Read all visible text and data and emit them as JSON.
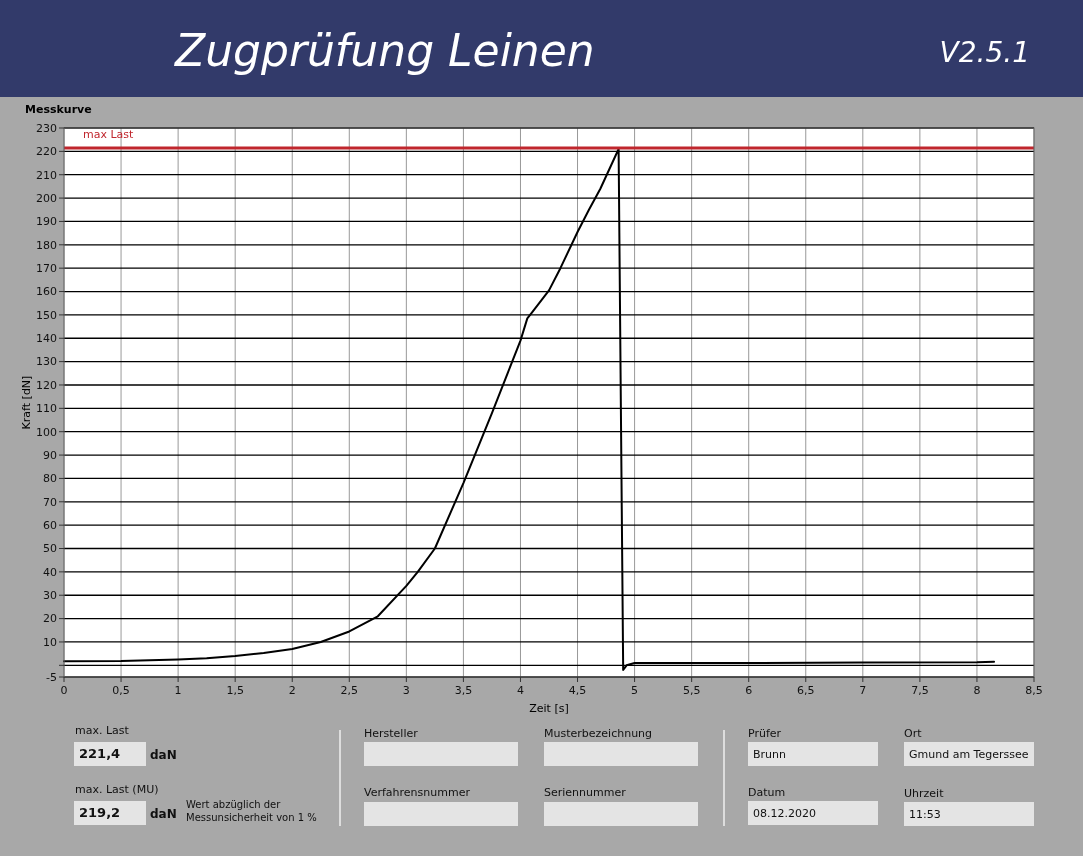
{
  "chart_data": {
    "type": "line",
    "title": "Zugprüfung Leinen",
    "subtitle": "Messkurve",
    "xlabel": "Zeit [s]",
    "ylabel": "Kraft [dN]",
    "xlim": [
      0,
      8.5
    ],
    "xticks": [
      0,
      {
        "value": 0.5,
        "label": "0,5"
      },
      1,
      {
        "value": 1.5,
        "label": "1,5"
      },
      2,
      {
        "value": 2.5,
        "label": "2,5"
      },
      3,
      {
        "value": 3.5,
        "label": "3,5"
      },
      4,
      {
        "value": 4.5,
        "label": "4,5"
      },
      5,
      {
        "value": 5.5,
        "label": "5,5"
      },
      6,
      {
        "value": 6.5,
        "label": "6,5"
      },
      7,
      {
        "value": 7.5,
        "label": "7,5"
      },
      8,
      {
        "value": 8.5,
        "label": "8,5"
      }
    ],
    "ylim": [
      -5,
      230
    ],
    "yticks": [
      -5,
      {
        "value": 0,
        "label": null
      },
      10,
      20,
      30,
      40,
      50,
      60,
      70,
      80,
      90,
      100,
      110,
      120,
      130,
      140,
      150,
      160,
      170,
      180,
      190,
      200,
      210,
      220,
      230
    ],
    "grid": true,
    "marker": "none",
    "line_style": "solid",
    "series": [
      {
        "color": "#000000",
        "x": [
          0,
          0.5,
          1,
          1.25,
          1.5,
          1.75,
          2,
          2.25,
          2.5,
          2.75,
          3,
          3.1,
          3.25,
          3.5,
          3.75,
          4,
          4.06,
          4.1,
          4.25,
          4.35,
          4.5,
          4.6,
          4.7,
          4.86,
          4.9,
          4.93,
          5,
          5.5,
          6,
          7,
          8,
          8.15
        ],
        "values": [
          1.7,
          1.8,
          2.5,
          3,
          4,
          5.3,
          7,
          10,
          14.5,
          21,
          34,
          40,
          50,
          78,
          108,
          139,
          148.5,
          151,
          160.5,
          170,
          185.5,
          195,
          204,
          221,
          -2,
          0,
          1,
          1,
          1,
          1.2,
          1.3,
          1.5
        ]
      }
    ],
    "ref_lines": [
      {
        "axis": "y",
        "value": 221.4,
        "label": "max Last",
        "color": "#c0262d"
      }
    ],
    "annotations": [
      "V2.5.1",
      "max. Last",
      "221,4",
      "daN",
      "max. Last (MU)",
      "219,2",
      "daN",
      "Wert abzüglich der Messunsicherheit von 1 %",
      "Hersteller",
      "Musterbezeichnung",
      "Verfahrensnummer",
      "Seriennummer",
      "Prüfer",
      "Brunn",
      "Datum",
      "08.12.2020",
      "Ort",
      "Gmund am Tegerssee",
      "Uhrzeit",
      "11:53"
    ]
  }
}
